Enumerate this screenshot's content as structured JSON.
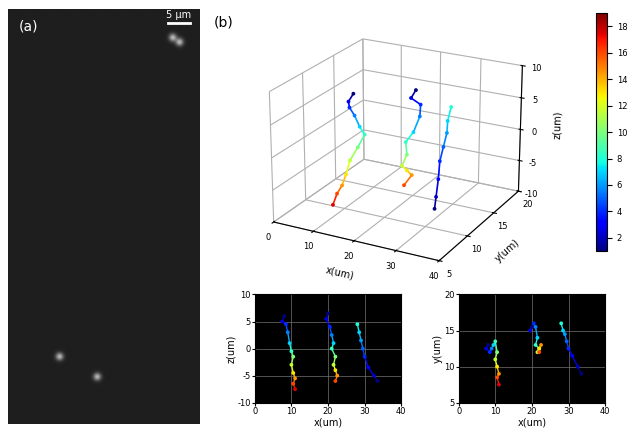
{
  "image_panel": {
    "panel_label": "(a)",
    "width_um": 43,
    "height_um": 93,
    "scale_bar": {
      "length": 5,
      "label": "5 µm"
    },
    "spots": [
      [
        37,
        6.5
      ],
      [
        38.5,
        7.5
      ],
      [
        11.5,
        78
      ],
      [
        20,
        82.5
      ]
    ]
  },
  "chart_data": [
    {
      "type": "line3d",
      "panel_label": "(b)",
      "x_label": "x(um)",
      "y_label": "y(um)",
      "z_label": "z(um)",
      "xlim": [
        0,
        40
      ],
      "xticks": [
        0,
        10,
        20,
        30,
        40
      ],
      "ylim": [
        5,
        20
      ],
      "yticks": [
        5,
        10,
        15,
        20
      ],
      "zlim": [
        -10,
        10
      ],
      "zticks": [
        -10,
        -5,
        0,
        5,
        10
      ],
      "grid": true,
      "colorbar": {
        "range": [
          1,
          19
        ],
        "ticks": [
          2,
          4,
          6,
          8,
          10,
          12,
          14,
          16,
          18
        ]
      },
      "series": [
        {
          "x": [
            8,
            7.5,
            8.5,
            9,
            9.5,
            10,
            10.5,
            10,
            10.5,
            11,
            10.5,
            11
          ],
          "y": [
            13,
            12.5,
            12,
            12.5,
            13,
            13.5,
            12,
            11,
            10,
            9,
            8.5,
            7.5
          ],
          "z": [
            6,
            5,
            4.5,
            3,
            1,
            -0.5,
            -1.5,
            -3,
            -4.5,
            -5.5,
            -6.5,
            -7.5
          ],
          "t": [
            1,
            2.5,
            4,
            5.5,
            7,
            8.5,
            10,
            11.5,
            13,
            14.5,
            16,
            17.5
          ]
        },
        {
          "x": [
            20,
            19.5,
            20.5,
            21,
            21.5,
            21,
            22,
            21.5,
            22,
            22.5,
            22
          ],
          "y": [
            15.5,
            15,
            16,
            15.5,
            14,
            13,
            12.5,
            12,
            12.5,
            13,
            12
          ],
          "z": [
            6.5,
            5.5,
            4,
            2.5,
            1,
            0,
            -1.5,
            -3,
            -4,
            -5,
            -6
          ],
          "t": [
            1,
            2.5,
            4,
            5.5,
            7,
            8.5,
            10,
            11.5,
            13,
            14.5,
            16
          ]
        },
        {
          "x": [
            33.5,
            32.5,
            31,
            30,
            29.5,
            29,
            28.5,
            28
          ],
          "y": [
            9,
            10,
            11.5,
            12.5,
            13.5,
            14.5,
            15,
            16
          ],
          "z": [
            -6,
            -5,
            -3.5,
            -1.5,
            0,
            1.5,
            3,
            4.5
          ],
          "t": [
            1,
            2,
            3,
            4,
            5,
            6,
            7,
            8
          ]
        }
      ]
    },
    {
      "type": "line",
      "x_label": "x(um)",
      "y_label": "z(um)",
      "xlim": [
        0,
        40
      ],
      "xticks": [
        0,
        10,
        20,
        30,
        40
      ],
      "ylim": [
        -10,
        10
      ],
      "yticks": [
        -10,
        -5,
        0,
        5,
        10
      ],
      "grid": true,
      "series": [
        {
          "x": [
            8,
            7.5,
            8.5,
            9,
            9.5,
            10,
            10.5,
            10,
            10.5,
            11,
            10.5,
            11
          ],
          "values": [
            6,
            5,
            4.5,
            3,
            1,
            -0.5,
            -1.5,
            -3,
            -4.5,
            -5.5,
            -6.5,
            -7.5
          ],
          "t": [
            1,
            2.5,
            4,
            5.5,
            7,
            8.5,
            10,
            11.5,
            13,
            14.5,
            16,
            17.5
          ]
        },
        {
          "x": [
            20,
            19.5,
            20.5,
            21,
            21.5,
            21,
            22,
            21.5,
            22,
            22.5,
            22
          ],
          "values": [
            6.5,
            5.5,
            4,
            2.5,
            1,
            0,
            -1.5,
            -3,
            -4,
            -5,
            -6
          ],
          "t": [
            1,
            2.5,
            4,
            5.5,
            7,
            8.5,
            10,
            11.5,
            13,
            14.5,
            16
          ]
        },
        {
          "x": [
            33.5,
            32.5,
            31,
            30,
            29.5,
            29,
            28.5,
            28
          ],
          "values": [
            -6,
            -5,
            -3.5,
            -1.5,
            0,
            1.5,
            3,
            4.5
          ],
          "t": [
            1,
            2,
            3,
            4,
            5,
            6,
            7,
            8
          ]
        }
      ]
    },
    {
      "type": "line",
      "x_label": "x(um)",
      "y_label": "y(um)",
      "xlim": [
        0,
        40
      ],
      "xticks": [
        0,
        10,
        20,
        30,
        40
      ],
      "ylim": [
        5,
        20
      ],
      "yticks": [
        5,
        10,
        15,
        20
      ],
      "grid": true,
      "series": [
        {
          "x": [
            8,
            7.5,
            8.5,
            9,
            9.5,
            10,
            10.5,
            10,
            10.5,
            11,
            10.5,
            11
          ],
          "values": [
            13,
            12.5,
            12,
            12.5,
            13,
            13.5,
            12,
            11,
            10,
            9,
            8.5,
            7.5
          ],
          "t": [
            1,
            2.5,
            4,
            5.5,
            7,
            8.5,
            10,
            11.5,
            13,
            14.5,
            16,
            17.5
          ]
        },
        {
          "x": [
            20,
            19.5,
            20.5,
            21,
            21.5,
            21,
            22,
            21.5,
            22,
            22.5,
            22
          ],
          "values": [
            15.5,
            15,
            16,
            15.5,
            14,
            13,
            12.5,
            12,
            12.5,
            13,
            12
          ],
          "t": [
            1,
            2.5,
            4,
            5.5,
            7,
            8.5,
            10,
            11.5,
            13,
            14.5,
            16
          ]
        },
        {
          "x": [
            33.5,
            32.5,
            31,
            30,
            29.5,
            29,
            28.5,
            28
          ],
          "values": [
            9,
            10,
            11.5,
            12.5,
            13.5,
            14.5,
            15,
            16
          ],
          "t": [
            1,
            2,
            3,
            4,
            5,
            6,
            7,
            8
          ]
        }
      ]
    }
  ]
}
